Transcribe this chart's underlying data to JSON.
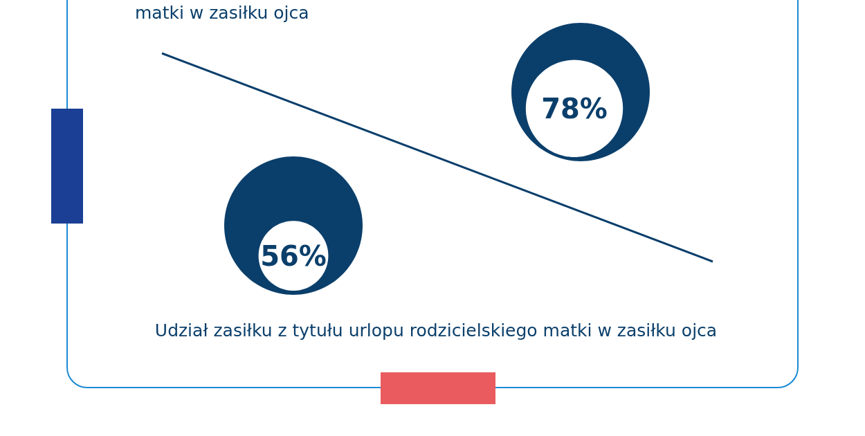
{
  "chart_data": {
    "type": "other",
    "categories": [
      null,
      null
    ],
    "values": [
      78,
      56
    ],
    "value_labels": [
      "78%",
      "56%"
    ],
    "color": "#0b3f6b",
    "annotations": [
      "matki w zasiłku ojca",
      "Udział zasiłku z tytułu urlopu rodzicielskiego matki w zasiłku ojca"
    ]
  }
}
